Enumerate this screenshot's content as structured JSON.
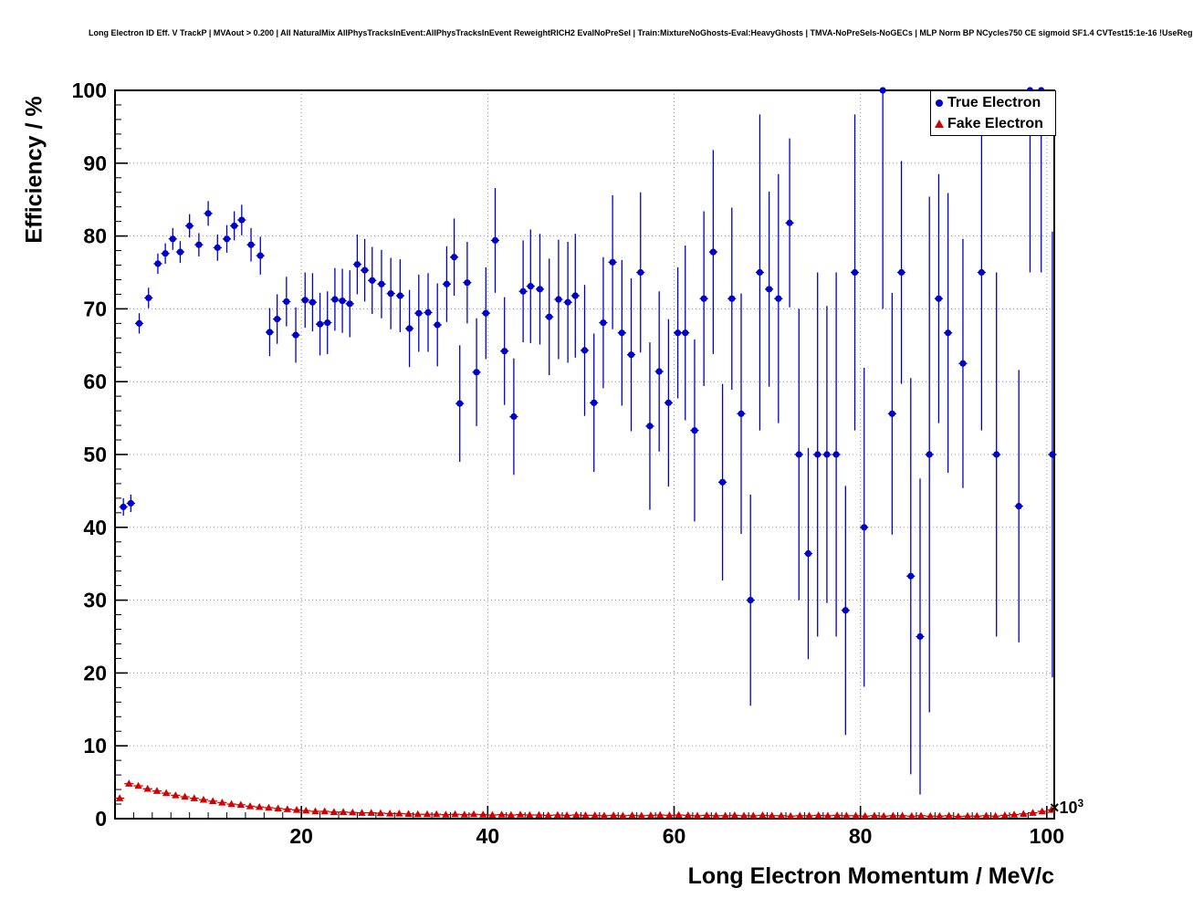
{
  "page": {
    "title": "Long Electron ID Eff. V TrackP | MVAout > 0.200 | All NaturalMix AllPhysTracksInEvent:AllPhysTracksInEvent ReweightRICH2 EvalNoPreSel | Train:MixtureNoGhosts-Eval:HeavyGhosts | TMVA-NoPreSels-NoGECs | MLP Norm BP NCycles750 CE sigmoid SF1.4 CVTest15:1e-16 !UseReg"
  },
  "chart_data": {
    "type": "scatter",
    "title": "Long Electron ID Eff. V TrackP",
    "xlabel": "Long Electron Momentum / MeV/c",
    "ylabel": "Efficiency / %",
    "x_multiplier": {
      "base": "×10",
      "exp": "3"
    },
    "xlim": [
      0,
      100.8
    ],
    "ylim": [
      0,
      100
    ],
    "x_major_ticks": [
      20,
      40,
      60,
      80,
      100
    ],
    "y_major_ticks": [
      0,
      10,
      20,
      30,
      40,
      50,
      60,
      70,
      80,
      90,
      100
    ],
    "x_minor_step": 2,
    "y_minor_step": 2,
    "grid": true,
    "grid_color": "#9a9a9a",
    "frame_color": "#000000",
    "legend": {
      "position": "top-right",
      "entries": [
        {
          "label": "True Electron",
          "marker": "circle",
          "color": "#0000cd"
        },
        {
          "label": "Fake Electron",
          "marker": "triangle",
          "color": "#d40000"
        }
      ]
    },
    "series": [
      {
        "name": "True Electron",
        "marker": "circle",
        "color": "#0000cd",
        "xerr_halfwidth": 0.45,
        "x": [
          0.9,
          1.7,
          2.6,
          3.6,
          4.6,
          5.4,
          6.2,
          7.0,
          8.0,
          9.0,
          10.0,
          11.0,
          12.0,
          12.8,
          13.6,
          14.6,
          15.6,
          16.6,
          17.4,
          18.4,
          19.4,
          20.4,
          21.2,
          22.0,
          22.8,
          23.6,
          24.4,
          25.2,
          26.0,
          26.8,
          27.6,
          28.6,
          29.6,
          30.6,
          31.6,
          32.6,
          33.6,
          34.6,
          35.6,
          36.4,
          37.0,
          37.8,
          38.8,
          39.8,
          40.8,
          41.8,
          42.8,
          43.8,
          44.6,
          45.6,
          46.6,
          47.6,
          48.6,
          49.4,
          50.4,
          51.4,
          52.4,
          53.4,
          54.4,
          55.4,
          56.4,
          57.4,
          58.4,
          59.4,
          60.4,
          61.2,
          62.2,
          63.2,
          64.2,
          65.2,
          66.2,
          67.2,
          68.2,
          69.2,
          70.2,
          71.2,
          72.4,
          73.4,
          74.4,
          75.4,
          76.4,
          77.4,
          78.4,
          79.4,
          80.4,
          82.4,
          83.4,
          84.4,
          85.4,
          86.4,
          87.4,
          88.4,
          89.4,
          91.0,
          93.0,
          94.6,
          97.0,
          98.2,
          99.4,
          100.6
        ],
        "y": [
          42.8,
          43.3,
          68.0,
          71.5,
          76.2,
          77.6,
          79.6,
          77.8,
          81.4,
          78.8,
          83.1,
          78.4,
          79.6,
          81.4,
          82.2,
          78.8,
          77.3,
          66.8,
          68.6,
          71.0,
          66.4,
          71.2,
          70.9,
          67.9,
          68.1,
          71.3,
          71.1,
          70.7,
          76.1,
          75.3,
          73.9,
          73.4,
          72.1,
          71.8,
          67.3,
          69.4,
          69.5,
          67.8,
          73.4,
          77.1,
          57.0,
          73.6,
          61.3,
          69.4,
          79.4,
          64.2,
          55.2,
          72.4,
          73.1,
          72.7,
          68.9,
          71.3,
          70.9,
          71.8,
          64.3,
          57.1,
          68.1,
          76.4,
          66.7,
          63.7,
          75.0,
          53.9,
          61.4,
          57.1,
          66.7,
          66.7,
          53.3,
          71.4,
          77.8,
          46.2,
          71.4,
          55.6,
          30.0,
          75.0,
          72.7,
          71.4,
          81.8,
          50.0,
          36.4,
          50.0,
          50.0,
          50.0,
          28.6,
          75.0,
          40.0,
          100.0,
          55.6,
          75.0,
          33.3,
          25.0,
          50.0,
          71.4,
          66.7,
          62.5,
          75.0,
          50.0,
          42.9,
          100.0,
          100.0,
          50.0
        ],
        "yerr": [
          1.2,
          1.2,
          1.4,
          1.4,
          1.4,
          1.4,
          1.5,
          1.5,
          1.6,
          1.6,
          1.7,
          1.8,
          1.9,
          2.0,
          2.1,
          2.3,
          2.6,
          3.3,
          3.4,
          3.4,
          3.8,
          3.8,
          4.0,
          4.3,
          4.3,
          4.3,
          4.4,
          4.6,
          4.1,
          4.3,
          4.6,
          4.7,
          4.9,
          5.0,
          5.3,
          5.3,
          5.4,
          5.7,
          5.2,
          5.3,
          8.0,
          5.6,
          7.4,
          6.3,
          7.2,
          7.4,
          8.0,
          7.0,
          7.8,
          7.6,
          8.0,
          8.2,
          8.3,
          8.5,
          9.0,
          9.5,
          9.0,
          9.2,
          10.0,
          10.5,
          11.0,
          11.5,
          11.0,
          11.5,
          9.0,
          12.0,
          12.5,
          12.0,
          14.0,
          13.5,
          12.5,
          16.5,
          14.5,
          21.7,
          13.4,
          17.1,
          11.6,
          20.0,
          14.5,
          25.0,
          20.4,
          25.0,
          17.1,
          21.7,
          21.9,
          30.0,
          16.6,
          15.3,
          27.2,
          21.7,
          35.4,
          17.1,
          19.2,
          17.1,
          21.7,
          25.0,
          18.7,
          25.0,
          25.0,
          30.6
        ]
      },
      {
        "name": "Fake Electron",
        "marker": "triangle",
        "color": "#d40000",
        "xerr_halfwidth": 0.5,
        "yerr_const": 0.2,
        "x": [
          0.5,
          1.5,
          2.5,
          3.5,
          4.5,
          5.5,
          6.5,
          7.5,
          8.5,
          9.5,
          10.5,
          11.5,
          12.5,
          13.5,
          14.5,
          15.5,
          16.5,
          17.5,
          18.5,
          19.5,
          20.5,
          21.5,
          22.5,
          23.5,
          24.5,
          25.5,
          26.5,
          27.5,
          28.5,
          29.5,
          30.5,
          31.5,
          32.5,
          33.5,
          34.5,
          35.5,
          36.5,
          37.5,
          38.5,
          39.5,
          40.5,
          41.5,
          42.5,
          43.5,
          44.5,
          45.5,
          46.5,
          47.5,
          48.5,
          49.5,
          50.5,
          51.5,
          52.5,
          53.5,
          54.5,
          55.5,
          56.5,
          57.5,
          58.5,
          59.5,
          60.5,
          61.5,
          62.5,
          63.5,
          64.5,
          65.5,
          66.5,
          67.5,
          68.5,
          69.5,
          70.5,
          71.5,
          72.5,
          73.5,
          74.5,
          75.5,
          76.5,
          77.5,
          78.5,
          79.5,
          80.5,
          81.5,
          82.5,
          83.5,
          84.5,
          85.5,
          86.5,
          87.5,
          88.5,
          89.5,
          90.5,
          91.5,
          92.5,
          93.5,
          94.5,
          95.5,
          96.5,
          97.5,
          98.5,
          99.5,
          100.5
        ],
        "y": [
          2.8,
          4.8,
          4.5,
          4.1,
          3.8,
          3.5,
          3.2,
          3.0,
          2.8,
          2.6,
          2.4,
          2.2,
          2.0,
          1.9,
          1.7,
          1.6,
          1.5,
          1.4,
          1.3,
          1.2,
          1.1,
          1.0,
          1.0,
          0.9,
          0.9,
          0.85,
          0.8,
          0.8,
          0.75,
          0.7,
          0.7,
          0.65,
          0.6,
          0.6,
          0.6,
          0.55,
          0.6,
          0.55,
          0.6,
          0.55,
          0.5,
          0.55,
          0.5,
          0.55,
          0.5,
          0.5,
          0.45,
          0.5,
          0.45,
          0.5,
          0.45,
          0.45,
          0.4,
          0.45,
          0.4,
          0.45,
          0.4,
          0.45,
          0.5,
          0.45,
          0.5,
          0.45,
          0.4,
          0.45,
          0.4,
          0.4,
          0.45,
          0.4,
          0.4,
          0.45,
          0.4,
          0.4,
          0.35,
          0.4,
          0.4,
          0.45,
          0.4,
          0.45,
          0.4,
          0.4,
          0.35,
          0.4,
          0.35,
          0.4,
          0.4,
          0.35,
          0.4,
          0.35,
          0.35,
          0.4,
          0.3,
          0.35,
          0.35,
          0.4,
          0.35,
          0.45,
          0.55,
          0.65,
          0.8,
          1.0,
          1.2
        ]
      }
    ]
  }
}
